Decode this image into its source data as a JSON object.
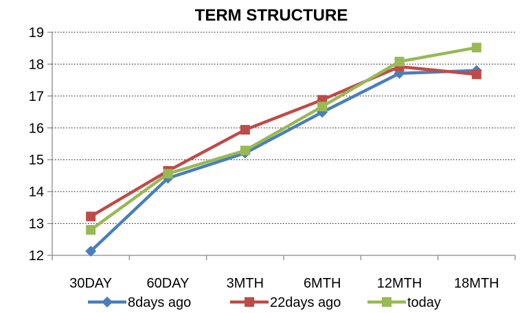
{
  "chart_data": {
    "type": "line",
    "title": "TERM STRUCTURE",
    "xlabel": "",
    "ylabel": "",
    "categories": [
      "30DAY",
      "60DAY",
      "3MTH",
      "6MTH",
      "12MTH",
      "18MTH"
    ],
    "ylim": [
      12,
      19
    ],
    "yticks": [
      12,
      13,
      14,
      15,
      16,
      17,
      18,
      19
    ],
    "grid": "horizontal",
    "legend_position": "bottom",
    "series": [
      {
        "name": "8days ago",
        "color": "#4a7ebb",
        "marker": "diamond",
        "values": [
          12.13,
          14.42,
          15.21,
          16.49,
          17.71,
          17.8
        ]
      },
      {
        "name": "22days ago",
        "color": "#be4b48",
        "marker": "square",
        "values": [
          13.22,
          14.65,
          15.94,
          16.88,
          17.92,
          17.68
        ]
      },
      {
        "name": "today",
        "color": "#98b954",
        "marker": "square",
        "values": [
          12.8,
          14.56,
          15.29,
          16.67,
          18.08,
          18.52
        ]
      }
    ]
  }
}
